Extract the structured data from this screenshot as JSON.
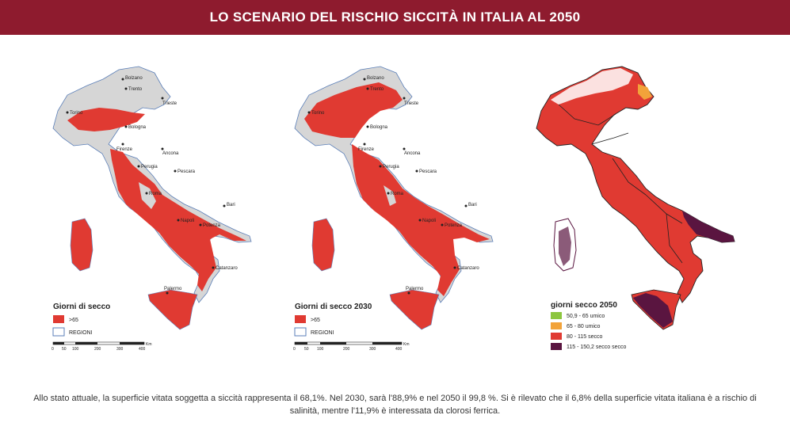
{
  "title": "LO SCENARIO DEL RISCHIO SICCITÀ IN ITALIA AL 2050",
  "caption": "Allo stato attuale, la superficie vitata soggetta a siccità rappresenta il 68,1%. Nel 2030, sarà l'88,9% e nel 2050 il 99,8 %. Si è rilevato che il 6,8% della superficie vitata italiana è a rischio di salinità, mentre l'11,9% è interessata da clorosi ferrica.",
  "colors": {
    "banner": "#8e1b2e",
    "red": "#e03a32",
    "grey": "#d6d6d6",
    "orange": "#f2a33a",
    "green": "#8cc63e",
    "purple": "#5a1540",
    "region_border": "#5b7fb8"
  },
  "cities": [
    "Bolzano",
    "Trento",
    "Trieste",
    "Torino",
    "Bologna",
    "Firenze",
    "Ancona",
    "Perugia",
    "Roma",
    "Pescara",
    "Bari",
    "Napoli",
    "Potenza",
    "Catanzaro",
    "Palermo"
  ],
  "maps": [
    {
      "legend_title": "Giorni di secco",
      "items": [
        {
          "label": ">65",
          "color": "#e03a32"
        },
        {
          "label": "REGIONI",
          "color": "#ffffff"
        }
      ],
      "scale_ticks": [
        "0",
        "50",
        "100",
        "200",
        "300",
        "400"
      ],
      "scale_unit": "Km"
    },
    {
      "legend_title": "Giorni di secco 2030",
      "items": [
        {
          "label": ">65",
          "color": "#e03a32"
        },
        {
          "label": "REGIONI",
          "color": "#ffffff"
        }
      ],
      "scale_ticks": [
        "0",
        "50",
        "100",
        "200",
        "300",
        "400"
      ],
      "scale_unit": "Km"
    },
    {
      "legend_title": "giorni secco 2050",
      "items": [
        {
          "label": "50,9 - 65 umico",
          "color": "#8cc63e"
        },
        {
          "label": "65 - 80 umico",
          "color": "#f2a33a"
        },
        {
          "label": "80 - 115 secco",
          "color": "#e03a32"
        },
        {
          "label": "115 - 150,2 secco secco",
          "color": "#5a1540"
        }
      ]
    }
  ]
}
